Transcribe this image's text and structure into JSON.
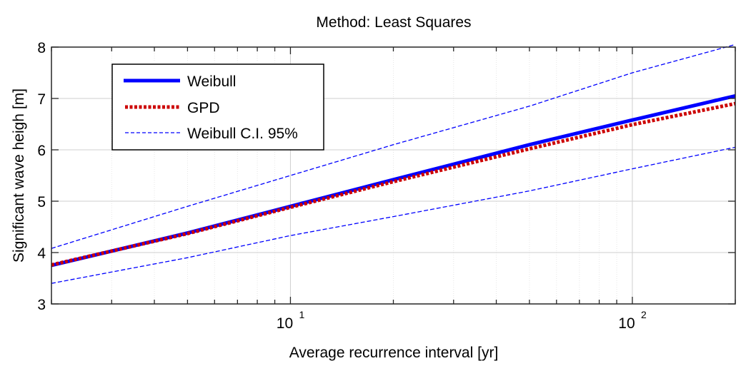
{
  "chart_data": {
    "type": "line",
    "title": "Method: Least Squares",
    "xlabel": "Average recurrence interval [yr]",
    "ylabel": "Significant wave heigh [m]",
    "xscale": "log",
    "xlim": [
      2,
      200
    ],
    "ylim": [
      3,
      8
    ],
    "grid": true,
    "legend_position": "top-left",
    "x_tick_labels": [
      {
        "base": "10",
        "exp": "1",
        "value": 10
      },
      {
        "base": "10",
        "exp": "2",
        "value": 100
      }
    ],
    "y_ticks": [
      3,
      4,
      5,
      6,
      7,
      8
    ],
    "x": [
      2,
      5,
      10,
      20,
      50,
      100,
      200
    ],
    "series": [
      {
        "name": "Weibull",
        "color": "#0000ff",
        "style": "solid",
        "values": [
          3.75,
          4.38,
          4.9,
          5.42,
          6.1,
          6.58,
          7.05
        ]
      },
      {
        "name": "GPD",
        "color": "#cc0000",
        "style": "dotted",
        "values": [
          3.76,
          4.37,
          4.88,
          5.38,
          6.02,
          6.49,
          6.9
        ]
      },
      {
        "name": "Weibull C.I. 95%",
        "color": "#0000ff",
        "style": "dashed",
        "values": [
          4.08,
          4.9,
          5.5,
          6.1,
          6.85,
          7.5,
          8.05
        ]
      },
      {
        "name": "Weibull C.I. 95% lower",
        "legend": false,
        "color": "#0000ff",
        "style": "dashed",
        "values": [
          3.4,
          3.9,
          4.33,
          4.7,
          5.2,
          5.63,
          6.05
        ]
      }
    ]
  }
}
